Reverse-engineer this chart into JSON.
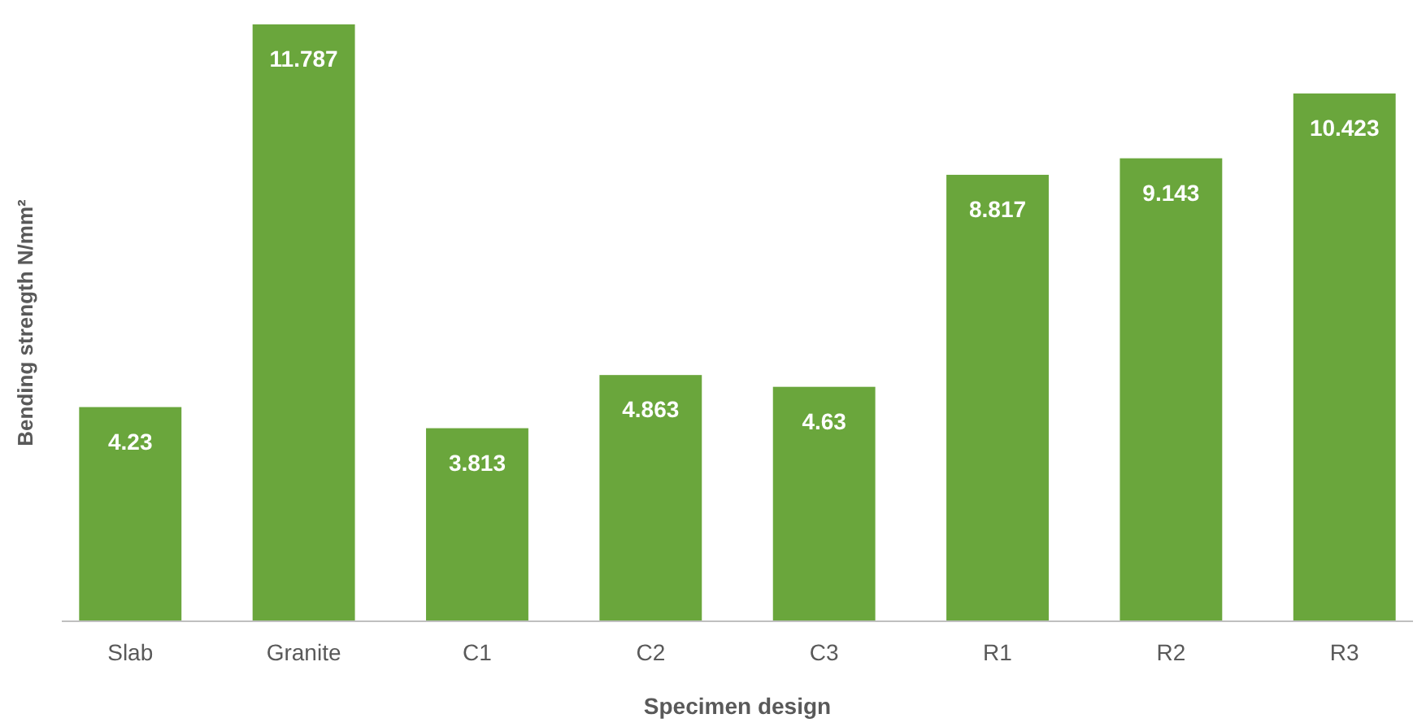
{
  "chart_data": {
    "type": "bar",
    "xlabel": "Specimen design",
    "ylabel": "Bending strength N/mm²",
    "categories": [
      "Slab",
      "Granite",
      "C1",
      "C2",
      "C3",
      "R1",
      "R2",
      "R3"
    ],
    "values": [
      4.23,
      11.787,
      3.813,
      4.863,
      4.63,
      8.817,
      9.143,
      10.423
    ],
    "color": "#6aa63c",
    "data_labels": true
  }
}
